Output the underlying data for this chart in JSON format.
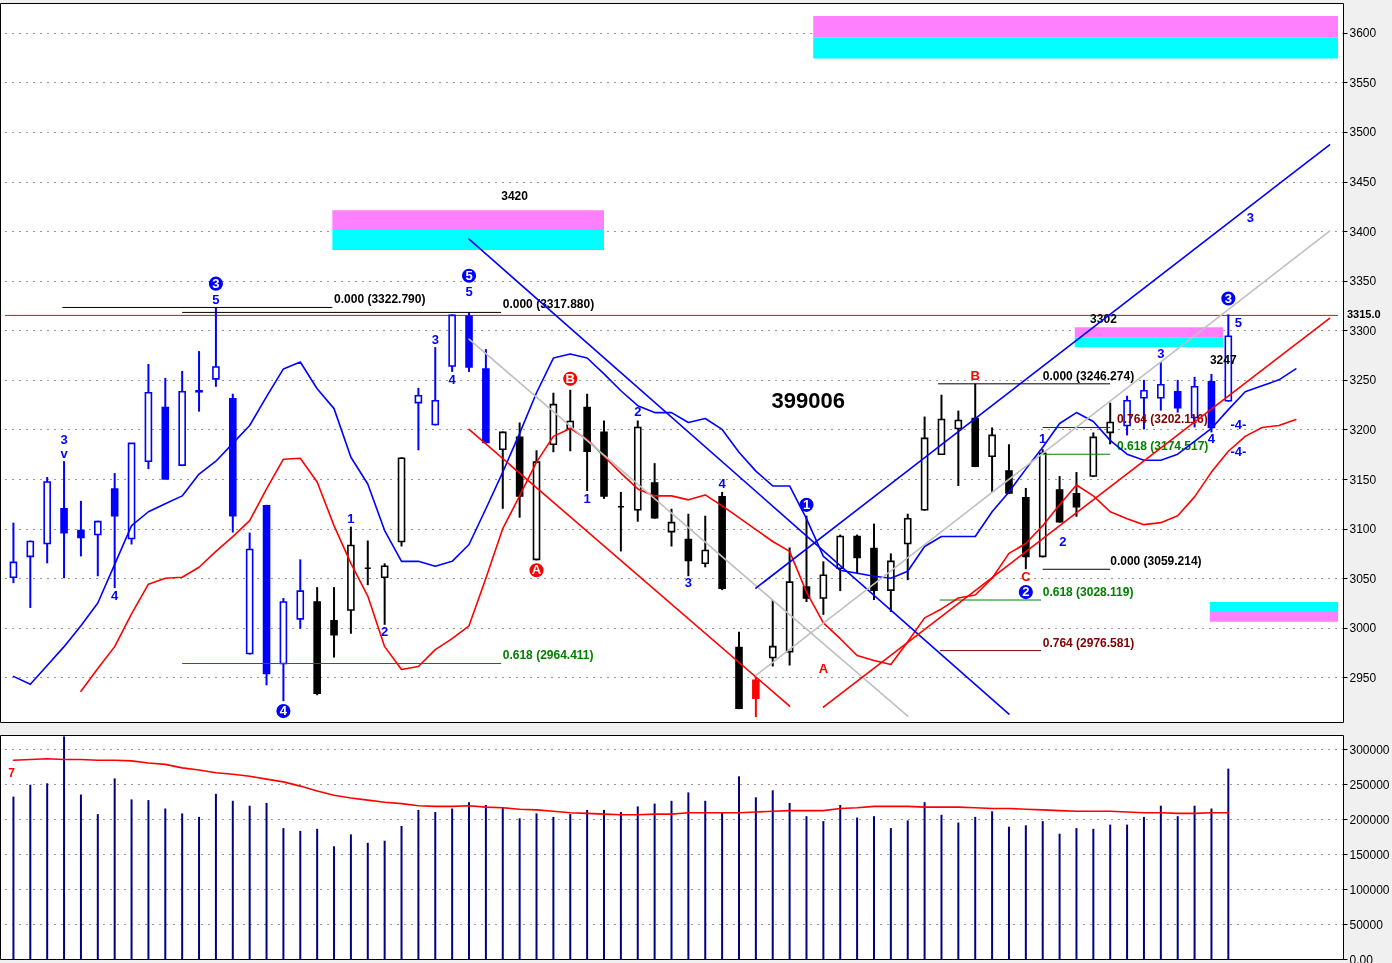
{
  "chart_data": [
    {
      "type": "candlestick",
      "tick_labels": "y",
      "grid": "y",
      "categories": [
        null,
        null,
        null,
        null,
        null,
        null,
        null,
        null,
        null,
        null,
        null,
        null,
        null,
        null,
        null,
        null,
        null,
        null,
        null,
        null,
        null,
        null,
        null,
        null,
        null,
        null,
        null,
        null,
        null,
        null,
        null,
        null,
        null,
        null,
        null,
        null,
        null,
        null,
        null,
        null,
        null,
        null,
        null,
        null,
        null,
        null,
        null,
        null,
        null,
        null,
        null,
        null,
        null,
        null,
        null,
        null,
        null,
        null,
        null,
        null,
        null,
        null,
        null,
        null,
        null,
        null,
        null,
        null,
        null,
        null,
        null,
        null,
        null,
        null,
        null,
        null,
        null,
        null,
        null
      ],
      "ohlc": [
        [
          3051,
          3106,
          3045,
          3066
        ],
        [
          3072,
          3088,
          3020,
          3087
        ],
        [
          3085,
          3152,
          3065,
          3147
        ],
        [
          3120,
          3168,
          3050,
          3096
        ],
        [
          3098,
          3128,
          3072,
          3091
        ],
        [
          3094,
          3108,
          3052,
          3107
        ],
        [
          3140,
          3156,
          3040,
          3113
        ],
        [
          3090,
          3186,
          3084,
          3186
        ],
        [
          3168,
          3266,
          3160,
          3237
        ],
        [
          3222,
          3252,
          3150,
          3150
        ],
        [
          3164,
          3259,
          3163,
          3238
        ],
        [
          3239,
          3279,
          3218,
          3238
        ],
        [
          3251,
          3323,
          3243,
          3263
        ],
        [
          3231,
          3236,
          3096,
          3113
        ],
        [
          2974,
          3096,
          2973,
          3079
        ],
        [
          3123,
          3124,
          2942,
          2954
        ],
        [
          2964,
          3030,
          2926,
          3026
        ],
        [
          3009,
          3069,
          2999,
          3037
        ],
        [
          3026,
          3041,
          2932,
          2934
        ],
        [
          3007,
          3041,
          2970,
          2993
        ],
        [
          3018,
          3102,
          2994,
          3083
        ],
        [
          3060,
          3088,
          3043,
          3060
        ],
        [
          3051,
          3065,
          3003,
          3062
        ],
        [
          3087,
          3172,
          3082,
          3171
        ],
        [
          3227,
          3242,
          3179,
          3234
        ],
        [
          3205,
          3283,
          3204,
          3229
        ],
        [
          3264,
          3316,
          3258,
          3315
        ],
        [
          3314,
          3318,
          3258,
          3263
        ],
        [
          3261,
          3281,
          3186,
          3187
        ],
        [
          3180,
          3198,
          3120,
          3197
        ],
        [
          3192,
          3207,
          3111,
          3133
        ],
        [
          3069,
          3179,
          3068,
          3167
        ],
        [
          3185,
          3237,
          3177,
          3225
        ],
        [
          3201,
          3240,
          3178,
          3208
        ],
        [
          3222,
          3236,
          3138,
          3178
        ],
        [
          3197,
          3209,
          3130,
          3133
        ],
        [
          3122,
          3137,
          3077,
          3122
        ],
        [
          3119,
          3209,
          3107,
          3202
        ],
        [
          3146,
          3166,
          3110,
          3111
        ],
        [
          3097,
          3120,
          3082,
          3106
        ],
        [
          3089,
          3115,
          3052,
          3068
        ],
        [
          3065,
          3113,
          3061,
          3078
        ],
        [
          3132,
          3137,
          3038,
          3040
        ],
        [
          2980,
          2996,
          2918,
          2919
        ],
        [
          2947,
          2950,
          2910,
          2929
        ],
        [
          2970,
          3028,
          2961,
          2981
        ],
        [
          2976,
          3081,
          2962,
          3046
        ],
        [
          3041,
          3113,
          3026,
          3030
        ],
        [
          3030,
          3067,
          3013,
          3053
        ],
        [
          3060,
          3094,
          3037,
          3092
        ],
        [
          3092,
          3094,
          3055,
          3071
        ],
        [
          3080,
          3105,
          3028,
          3038
        ],
        [
          3038,
          3075,
          3016,
          3067
        ],
        [
          3085,
          3115,
          3048,
          3110
        ],
        [
          3119,
          3213,
          3118,
          3191
        ],
        [
          3175,
          3235,
          3175,
          3210
        ],
        [
          3201,
          3219,
          3143,
          3209
        ],
        [
          3211,
          3246,
          3162,
          3163
        ],
        [
          3173,
          3202,
          3137,
          3194
        ],
        [
          3158,
          3185,
          3135,
          3136
        ],
        [
          3131,
          3141,
          3059,
          3072
        ],
        [
          3072,
          3180,
          3071,
          3176
        ],
        [
          3139,
          3153,
          3106,
          3107
        ],
        [
          3135,
          3157,
          3112,
          3122
        ],
        [
          3153,
          3197,
          3152,
          3192
        ],
        [
          3197,
          3227,
          3185,
          3207
        ],
        [
          3204,
          3234,
          3194,
          3229
        ],
        [
          3232,
          3250,
          3200,
          3239
        ],
        [
          3232,
          3268,
          3219,
          3245
        ],
        [
          3238,
          3250,
          3217,
          3222
        ],
        [
          3212,
          3253,
          3202,
          3243
        ],
        [
          3248,
          3256,
          3197,
          3202
        ],
        [
          3229,
          3316,
          3228,
          3294
        ],
        null,
        null,
        null,
        null,
        null,
        null
      ],
      "colors": [
        "#0000ff",
        "#0000ff",
        "#0000ff",
        "#0000ff",
        "#0000ff",
        "#0000ff",
        "#0000ff",
        "#0000ff",
        "#0000ff",
        "#0000ff",
        "#0000ff",
        "#0000ff",
        "#0000ff",
        "#0000ff",
        "#0000ff",
        "#0000ff",
        "#0000ff",
        "#0000ff",
        "#000000",
        "#000000",
        "#000000",
        "#000000",
        "#000000",
        "#000000",
        "#0000ff",
        "#0000ff",
        "#0000ff",
        "#0000ff",
        "#0000ff",
        "#000000",
        "#000000",
        "#000000",
        "#000000",
        "#000000",
        "#000000",
        "#000000",
        "#000000",
        "#000000",
        "#000000",
        "#000000",
        "#000000",
        "#000000",
        "#000000",
        "#000000",
        "#ff0000",
        "#000000",
        "#000000",
        "#000000",
        "#000000",
        "#000000",
        "#000000",
        "#000000",
        "#000000",
        "#000000",
        "#000000",
        "#000000",
        "#000000",
        "#000000",
        "#000000",
        "#000000",
        "#000000",
        "#000000",
        "#000000",
        "#000000",
        "#000000",
        "#000000",
        "#0000ff",
        "#0000ff",
        "#0000ff",
        "#0000ff",
        "#0000ff",
        "#0000ff",
        "#0000ff",
        null,
        null,
        null,
        null,
        null,
        null
      ],
      "series": [
        {
          "type": "line",
          "color": "#0000ff",
          "values": [
            2951,
            2943,
            2962,
            2981,
            3002,
            3025,
            3064,
            3103,
            3117,
            3125,
            3133,
            3155,
            3168,
            3186,
            3204,
            3233,
            3261,
            3268,
            3241,
            3221,
            3172,
            3145,
            3098,
            3067,
            3067,
            3062,
            3067,
            3084,
            3120,
            3157,
            3196,
            3237,
            3272,
            3276,
            3272,
            3256,
            3239,
            3224,
            3217,
            3217,
            3207,
            3211,
            3200,
            3177,
            3158,
            3143,
            3143,
            3110,
            3072,
            3058,
            3055,
            3052,
            3050,
            3057,
            3082,
            3092,
            3092,
            3092,
            3117,
            3137,
            3160,
            3182,
            3206,
            3217,
            3208,
            3189,
            3175,
            3169,
            3169,
            3175,
            3188,
            3201,
            3220,
            3238,
            3244,
            3250,
            3261,
            null,
            null
          ]
        },
        {
          "type": "line",
          "color": "#ff0000",
          "values": [
            null,
            null,
            null,
            null,
            2936,
            2959,
            2981,
            3014,
            3044,
            3050,
            3051,
            3061,
            3077,
            3092,
            3108,
            3140,
            3170,
            3171,
            3147,
            3103,
            3065,
            3032,
            2981,
            2958,
            2961,
            2978,
            2989,
            3002,
            3050,
            3100,
            3133,
            3167,
            3193,
            3201,
            3190,
            3173,
            3156,
            3140,
            3133,
            3133,
            3129,
            3134,
            3123,
            3111,
            3099,
            3087,
            3077,
            3036,
            3005,
            2989,
            2972,
            2967,
            2963,
            2986,
            3010,
            3019,
            3030,
            3033,
            3050,
            3075,
            3085,
            3103,
            3124,
            3144,
            3133,
            3117,
            3110,
            3104,
            3106,
            3113,
            3132,
            3157,
            3178,
            3193,
            3202,
            3204,
            3210,
            null,
            null
          ]
        },
        {
          "type": "line",
          "color": "#0000ff",
          "values": [
            null,
            null,
            null,
            null,
            null,
            null,
            null,
            null,
            null,
            null,
            null,
            null,
            null,
            null,
            null,
            null,
            null,
            null,
            null,
            null,
            null,
            null,
            null,
            null,
            null,
            null,
            null,
            3392,
            null,
            null,
            null,
            null,
            null,
            null,
            null,
            null,
            null,
            null,
            null,
            null,
            null,
            null,
            null,
            null,
            null,
            null,
            null,
            null,
            null,
            null,
            null,
            null,
            null,
            null,
            null,
            null,
            null,
            null,
            null,
            2913,
            null,
            null,
            null,
            null,
            null,
            null,
            null,
            null,
            null,
            null,
            null,
            null,
            null,
            null,
            null,
            null,
            null,
            null,
            null
          ]
        },
        {
          "type": "line",
          "color": "#ff0000",
          "values": [
            null,
            null,
            null,
            null,
            null,
            null,
            null,
            null,
            null,
            null,
            null,
            null,
            null,
            null,
            null,
            null,
            null,
            null,
            null,
            null,
            null,
            null,
            null,
            null,
            null,
            null,
            null,
            3200,
            null,
            null,
            null,
            null,
            null,
            null,
            null,
            null,
            null,
            null,
            null,
            null,
            null,
            null,
            null,
            null,
            null,
            null,
            2921,
            null,
            null,
            null,
            null,
            null,
            null,
            null,
            null,
            null,
            null,
            null,
            null,
            null,
            null,
            null,
            null,
            null,
            null,
            null,
            null,
            null,
            null,
            null,
            null,
            null,
            null,
            null,
            null,
            null,
            null,
            null,
            null
          ]
        },
        {
          "type": "line",
          "color": "#c0c0c0",
          "values": [
            null,
            null,
            null,
            null,
            null,
            null,
            null,
            null,
            null,
            null,
            null,
            null,
            null,
            null,
            null,
            null,
            null,
            null,
            null,
            null,
            null,
            null,
            null,
            null,
            null,
            null,
            null,
            3291,
            null,
            null,
            null,
            null,
            null,
            null,
            null,
            null,
            null,
            null,
            null,
            null,
            null,
            null,
            null,
            null,
            null,
            null,
            null,
            null,
            null,
            null,
            null,
            null,
            null,
            2911,
            null,
            null,
            null,
            null,
            null,
            null,
            null,
            null,
            null,
            null,
            null,
            null,
            null,
            null,
            null,
            null,
            null,
            null,
            null,
            null,
            null,
            null,
            null,
            null,
            null
          ]
        },
        {
          "type": "line",
          "color": "#0000ff",
          "values": [
            null,
            null,
            null,
            null,
            null,
            null,
            null,
            null,
            null,
            null,
            null,
            null,
            null,
            null,
            null,
            null,
            null,
            null,
            null,
            null,
            null,
            null,
            null,
            null,
            null,
            null,
            null,
            null,
            null,
            null,
            null,
            null,
            null,
            null,
            null,
            null,
            null,
            null,
            null,
            null,
            null,
            null,
            null,
            null,
            3040,
            null,
            null,
            null,
            null,
            null,
            null,
            null,
            null,
            null,
            null,
            null,
            null,
            null,
            null,
            null,
            null,
            null,
            null,
            null,
            null,
            null,
            null,
            null,
            null,
            null,
            null,
            null,
            null,
            null,
            null,
            null,
            null,
            null,
            3487
          ]
        },
        {
          "type": "line",
          "color": "#ff0000",
          "values": [
            null,
            null,
            null,
            null,
            null,
            null,
            null,
            null,
            null,
            null,
            null,
            null,
            null,
            null,
            null,
            null,
            null,
            null,
            null,
            null,
            null,
            null,
            null,
            null,
            null,
            null,
            null,
            null,
            null,
            null,
            null,
            null,
            null,
            null,
            null,
            null,
            null,
            null,
            null,
            null,
            null,
            null,
            null,
            null,
            null,
            null,
            null,
            null,
            2920,
            null,
            null,
            null,
            null,
            null,
            null,
            null,
            null,
            null,
            null,
            null,
            null,
            null,
            null,
            null,
            null,
            null,
            null,
            null,
            null,
            null,
            null,
            null,
            null,
            null,
            null,
            null,
            null,
            null,
            3312
          ]
        },
        {
          "type": "line",
          "color": "#c0c0c0",
          "values": [
            null,
            null,
            null,
            null,
            null,
            null,
            null,
            null,
            null,
            null,
            null,
            null,
            null,
            null,
            null,
            null,
            null,
            null,
            null,
            null,
            null,
            null,
            null,
            null,
            null,
            null,
            null,
            null,
            null,
            null,
            null,
            null,
            null,
            null,
            null,
            null,
            null,
            null,
            null,
            null,
            null,
            null,
            null,
            null,
            2952,
            null,
            null,
            null,
            null,
            null,
            null,
            null,
            null,
            null,
            null,
            null,
            null,
            null,
            null,
            null,
            null,
            null,
            null,
            null,
            null,
            null,
            null,
            null,
            null,
            null,
            null,
            null,
            null,
            null,
            null,
            null,
            null,
            null,
            3400
          ]
        }
      ],
      "ylim": [
        2905,
        3630
      ],
      "yticks": [
        2950,
        3000,
        3050,
        3100,
        3150,
        3200,
        3250,
        3300,
        3350,
        3400,
        3450,
        3500,
        3550,
        3600
      ],
      "ref_lines": [
        {
          "axis": "y",
          "value": 3315,
          "label": "3315.0",
          "color": "#ff0000"
        }
      ],
      "bands": [
        {
          "axis": "y",
          "from": 3595,
          "to": 3617,
          "color": "#ff80ff"
        },
        {
          "axis": "y",
          "from": 3574,
          "to": 3595,
          "color": "#00ffff"
        },
        {
          "axis": "y",
          "from": 3401,
          "to": 3421,
          "color": "#ff80ff"
        },
        {
          "axis": "y",
          "from": 3381,
          "to": 3401,
          "color": "#00ffff"
        },
        {
          "axis": "y",
          "from": 3293,
          "to": 3303,
          "color": "#ff80ff"
        },
        {
          "axis": "y",
          "from": 3283,
          "to": 3293,
          "color": "#00ffff"
        },
        {
          "axis": "y",
          "from": 3016,
          "to": 3026,
          "color": "#00ffff"
        },
        {
          "axis": "y",
          "from": 3006,
          "to": 3016,
          "color": "#ff80ff"
        }
      ],
      "annotations": [
        "0.000 (3322.790)",
        "0.000 (3317.880)",
        "0.618 (2964.411)",
        "0.000 (3246.274)",
        "0.764 (3202.116)",
        "0.618 (3174.517)",
        "0.000 (3059.214)",
        "0.618 (3028.119)",
        "0.764 (2976.581)",
        "3420",
        "3302",
        "3247",
        "399006",
        "3",
        "v",
        "4",
        "3",
        "5",
        "1",
        "2",
        "3",
        "4",
        "5",
        "5",
        "4",
        "A",
        "B",
        "1",
        "2",
        "3",
        "4",
        "1",
        "A",
        "B",
        "C",
        "2",
        "1",
        "2",
        "3",
        "4",
        "3",
        "5",
        "-4-",
        "-4-",
        "3"
      ]
    },
    {
      "type": "bar",
      "tick_labels": "y",
      "grid": "y",
      "categories": [
        null,
        null,
        null,
        null,
        null,
        null,
        null,
        null,
        null,
        null,
        null,
        null,
        null,
        null,
        null,
        null,
        null,
        null,
        null,
        null,
        null,
        null,
        null,
        null,
        null,
        null,
        null,
        null,
        null,
        null,
        null,
        null,
        null,
        null,
        null,
        null,
        null,
        null,
        null,
        null,
        null,
        null,
        null,
        null,
        null,
        null,
        null,
        null,
        null,
        null,
        null,
        null,
        null,
        null,
        null,
        null,
        null,
        null,
        null,
        null,
        null,
        null,
        null,
        null,
        null,
        null,
        null,
        null,
        null,
        null,
        null,
        null,
        null,
        null,
        null,
        null,
        null,
        null,
        null
      ],
      "series": [
        {
          "type": "bar",
          "color": "#000080",
          "values": [
            232000,
            249000,
            251000,
            318000,
            235000,
            207000,
            258000,
            228000,
            227000,
            215000,
            208000,
            203000,
            236000,
            226000,
            219000,
            223000,
            187000,
            183000,
            186000,
            161000,
            178000,
            166000,
            169000,
            190000,
            213000,
            210000,
            215000,
            224000,
            220000,
            217000,
            201000,
            208000,
            203000,
            207000,
            213000,
            213000,
            210000,
            218000,
            222000,
            226000,
            238000,
            226000,
            210000,
            261000,
            231000,
            241000,
            223000,
            204000,
            197000,
            220000,
            202000,
            204000,
            187000,
            198000,
            224000,
            206000,
            195000,
            203000,
            211000,
            189000,
            191000,
            197000,
            179000,
            187000,
            186000,
            192000,
            192000,
            203000,
            219000,
            204000,
            219000,
            215000,
            272000,
            null,
            null,
            null,
            null,
            null,
            null
          ]
        },
        {
          "type": "line",
          "color": "#ff0000",
          "values": [
            284000,
            285000,
            286000,
            285000,
            285000,
            284000,
            284000,
            283000,
            280000,
            278000,
            273000,
            270000,
            266000,
            264000,
            261000,
            257000,
            253000,
            247000,
            240000,
            234000,
            230000,
            227000,
            224000,
            222000,
            219000,
            218000,
            218000,
            219000,
            217000,
            216000,
            214000,
            213000,
            211000,
            209000,
            208000,
            207000,
            206000,
            206000,
            207000,
            207000,
            209000,
            209000,
            209000,
            209000,
            210000,
            211000,
            212000,
            212000,
            212000,
            215000,
            216000,
            218000,
            218000,
            218000,
            217000,
            217000,
            217000,
            216000,
            215000,
            215000,
            214000,
            213000,
            212000,
            211000,
            211000,
            211000,
            210000,
            209000,
            209000,
            208000,
            208000,
            209000,
            209000,
            null,
            null,
            null,
            null,
            null,
            null
          ]
        }
      ],
      "ylim": [
        0,
        320000
      ],
      "yticks": [
        {
          "value": 0,
          "label": "0.00"
        },
        50000,
        100000,
        150000,
        200000,
        250000,
        300000
      ],
      "annotations": [
        "7"
      ]
    }
  ]
}
